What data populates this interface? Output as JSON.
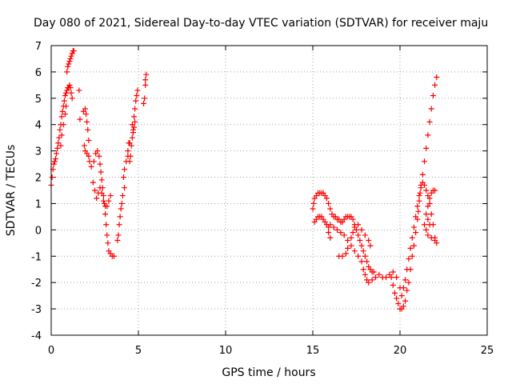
{
  "chart_data": {
    "type": "scatter",
    "title": "Day 080 of 2021, Sidereal Day-to-day VTEC variation (SDTVAR) for receiver maju",
    "xlabel": "GPS time / hours",
    "ylabel": "SDTVAR / TECUs",
    "xlim": [
      0,
      25
    ],
    "ylim": [
      -4,
      7
    ],
    "xticks": [
      0,
      5,
      10,
      15,
      20,
      25
    ],
    "yticks": [
      -4,
      -3,
      -2,
      -1,
      0,
      1,
      2,
      3,
      4,
      5,
      6,
      7
    ],
    "grid": true,
    "marker": "+",
    "color": "#ff0000",
    "series": [
      {
        "name": "trace-1-rise",
        "points": [
          [
            0.0,
            1.7
          ],
          [
            0.05,
            2.0
          ],
          [
            0.1,
            2.3
          ],
          [
            0.15,
            2.5
          ],
          [
            0.2,
            2.6
          ],
          [
            0.25,
            2.7
          ],
          [
            0.3,
            2.9
          ],
          [
            0.35,
            3.1
          ],
          [
            0.4,
            3.3
          ],
          [
            0.45,
            3.5
          ],
          [
            0.5,
            3.8
          ],
          [
            0.55,
            4.0
          ],
          [
            0.6,
            4.3
          ],
          [
            0.65,
            4.5
          ],
          [
            0.7,
            4.7
          ],
          [
            0.75,
            4.9
          ],
          [
            0.8,
            5.1
          ],
          [
            0.85,
            5.2
          ],
          [
            0.9,
            5.3
          ],
          [
            0.95,
            5.4
          ],
          [
            1.0,
            5.4
          ],
          [
            1.05,
            5.5
          ],
          [
            1.1,
            5.4
          ],
          [
            1.15,
            5.2
          ],
          [
            1.2,
            5.0
          ],
          [
            0.9,
            6.0
          ],
          [
            0.95,
            6.2
          ],
          [
            1.0,
            6.3
          ],
          [
            1.05,
            6.4
          ],
          [
            1.1,
            6.5
          ],
          [
            1.15,
            6.6
          ],
          [
            1.2,
            6.7
          ],
          [
            1.25,
            6.8
          ],
          [
            1.3,
            6.8
          ],
          [
            1.6,
            5.3
          ],
          [
            0.55,
            3.2
          ],
          [
            0.6,
            3.6
          ],
          [
            0.7,
            4.0
          ],
          [
            0.8,
            4.4
          ],
          [
            0.85,
            4.7
          ]
        ]
      },
      {
        "name": "trace-1-fall",
        "points": [
          [
            1.65,
            4.2
          ],
          [
            1.85,
            4.5
          ],
          [
            1.95,
            4.6
          ],
          [
            2.0,
            4.4
          ],
          [
            2.05,
            4.1
          ],
          [
            2.1,
            3.8
          ],
          [
            2.15,
            3.4
          ],
          [
            1.9,
            3.2
          ],
          [
            1.95,
            3.0
          ],
          [
            2.05,
            2.9
          ],
          [
            2.15,
            2.8
          ],
          [
            2.2,
            2.6
          ],
          [
            2.3,
            2.4
          ],
          [
            2.45,
            2.6
          ],
          [
            2.55,
            2.9
          ],
          [
            2.65,
            3.0
          ],
          [
            2.75,
            2.8
          ],
          [
            2.8,
            2.5
          ],
          [
            2.85,
            2.2
          ],
          [
            2.9,
            1.9
          ],
          [
            2.95,
            1.6
          ],
          [
            3.0,
            1.3
          ],
          [
            3.05,
            1.0
          ],
          [
            3.1,
            0.6
          ],
          [
            3.15,
            0.2
          ],
          [
            3.2,
            -0.2
          ],
          [
            3.25,
            -0.5
          ],
          [
            3.3,
            -0.8
          ],
          [
            3.4,
            -0.9
          ],
          [
            3.5,
            -1.0
          ],
          [
            3.6,
            -1.0
          ],
          [
            2.4,
            1.8
          ],
          [
            2.5,
            1.5
          ],
          [
            2.6,
            1.2
          ],
          [
            2.7,
            1.4
          ],
          [
            2.8,
            1.6
          ],
          [
            2.9,
            1.4
          ],
          [
            3.0,
            1.1
          ],
          [
            3.1,
            0.9
          ],
          [
            3.2,
            0.9
          ],
          [
            3.3,
            1.1
          ],
          [
            3.4,
            1.3
          ]
        ]
      },
      {
        "name": "trace-1-second-rise",
        "points": [
          [
            3.8,
            -0.4
          ],
          [
            3.85,
            -0.2
          ],
          [
            3.9,
            0.2
          ],
          [
            3.95,
            0.5
          ],
          [
            4.0,
            0.8
          ],
          [
            4.05,
            1.0
          ],
          [
            4.1,
            1.3
          ],
          [
            4.2,
            1.6
          ],
          [
            4.15,
            2.0
          ],
          [
            4.2,
            2.3
          ],
          [
            4.3,
            2.6
          ],
          [
            4.4,
            3.0
          ],
          [
            4.45,
            3.3
          ],
          [
            4.5,
            3.3
          ],
          [
            4.4,
            2.8
          ],
          [
            4.5,
            2.6
          ],
          [
            4.55,
            2.8
          ],
          [
            4.6,
            3.2
          ],
          [
            4.65,
            3.5
          ],
          [
            4.7,
            3.8
          ],
          [
            4.65,
            4.0
          ],
          [
            4.75,
            4.3
          ],
          [
            4.8,
            4.6
          ],
          [
            4.85,
            4.9
          ],
          [
            4.9,
            5.1
          ],
          [
            4.95,
            5.3
          ],
          [
            4.7,
            3.7
          ],
          [
            4.75,
            3.9
          ],
          [
            4.8,
            4.1
          ],
          [
            5.3,
            4.8
          ],
          [
            5.35,
            5.0
          ],
          [
            5.4,
            5.5
          ],
          [
            5.4,
            5.7
          ],
          [
            5.45,
            5.9
          ]
        ]
      },
      {
        "name": "trace-2-early",
        "points": [
          [
            15.0,
            0.8
          ],
          [
            15.05,
            1.0
          ],
          [
            15.1,
            1.2
          ],
          [
            15.2,
            1.3
          ],
          [
            15.3,
            1.4
          ],
          [
            15.4,
            1.4
          ],
          [
            15.5,
            1.4
          ],
          [
            15.6,
            1.4
          ],
          [
            15.7,
            1.3
          ],
          [
            15.8,
            1.2
          ],
          [
            15.9,
            1.0
          ],
          [
            16.0,
            0.8
          ],
          [
            16.1,
            0.6
          ],
          [
            16.2,
            0.5
          ],
          [
            16.3,
            0.5
          ],
          [
            16.4,
            0.4
          ],
          [
            16.5,
            0.4
          ],
          [
            16.6,
            0.3
          ],
          [
            16.7,
            0.3
          ],
          [
            16.8,
            0.4
          ],
          [
            16.9,
            0.5
          ],
          [
            17.0,
            0.5
          ],
          [
            17.1,
            0.5
          ],
          [
            17.2,
            0.5
          ],
          [
            17.3,
            0.4
          ],
          [
            17.4,
            0.2
          ],
          [
            17.5,
            0.0
          ],
          [
            17.6,
            -0.2
          ],
          [
            17.7,
            -0.4
          ],
          [
            17.8,
            -0.6
          ],
          [
            17.9,
            -0.8
          ],
          [
            18.0,
            -1.0
          ],
          [
            18.1,
            -1.2
          ],
          [
            18.2,
            -1.4
          ],
          [
            18.3,
            -1.5
          ],
          [
            18.4,
            -1.6
          ],
          [
            18.5,
            -1.6
          ],
          [
            15.1,
            0.3
          ],
          [
            15.2,
            0.4
          ],
          [
            15.3,
            0.5
          ],
          [
            15.4,
            0.5
          ],
          [
            15.5,
            0.5
          ],
          [
            15.6,
            0.4
          ],
          [
            15.7,
            0.3
          ],
          [
            15.8,
            0.2
          ],
          [
            15.9,
            -0.1
          ],
          [
            16.0,
            -0.3
          ],
          [
            15.9,
            0.1
          ],
          [
            16.0,
            0.2
          ],
          [
            16.2,
            0.1
          ],
          [
            16.4,
            0.0
          ],
          [
            16.6,
            -0.1
          ],
          [
            16.8,
            -0.2
          ],
          [
            17.0,
            -0.4
          ],
          [
            17.2,
            -0.6
          ],
          [
            17.4,
            -0.8
          ],
          [
            17.6,
            -1.0
          ],
          [
            17.8,
            -1.2
          ],
          [
            17.9,
            -1.5
          ],
          [
            18.0,
            -1.7
          ],
          [
            18.1,
            -1.9
          ],
          [
            18.2,
            -2.0
          ],
          [
            18.4,
            -1.9
          ],
          [
            18.6,
            -1.8
          ],
          [
            16.5,
            -1.0
          ],
          [
            16.7,
            -1.0
          ],
          [
            16.9,
            -0.9
          ],
          [
            17.0,
            -0.7
          ],
          [
            17.2,
            -0.3
          ],
          [
            17.3,
            -0.1
          ],
          [
            17.4,
            0.1
          ],
          [
            17.6,
            0.2
          ],
          [
            17.8,
            0.0
          ],
          [
            18.0,
            -0.2
          ],
          [
            18.2,
            -0.4
          ],
          [
            18.3,
            -0.6
          ]
        ]
      },
      {
        "name": "trace-2-late",
        "points": [
          [
            18.8,
            -1.7
          ],
          [
            19.0,
            -1.8
          ],
          [
            19.2,
            -1.8
          ],
          [
            19.4,
            -1.7
          ],
          [
            19.5,
            -1.8
          ],
          [
            19.6,
            -2.1
          ],
          [
            19.7,
            -2.4
          ],
          [
            19.8,
            -2.6
          ],
          [
            19.9,
            -2.8
          ],
          [
            20.0,
            -3.0
          ],
          [
            20.1,
            -3.0
          ],
          [
            20.2,
            -2.9
          ],
          [
            20.3,
            -2.7
          ],
          [
            20.4,
            -2.3
          ],
          [
            20.5,
            -2.0
          ],
          [
            20.6,
            -1.5
          ],
          [
            20.7,
            -1.0
          ],
          [
            20.8,
            -0.6
          ],
          [
            20.9,
            -0.1
          ],
          [
            21.0,
            0.4
          ],
          [
            21.05,
            0.7
          ],
          [
            21.1,
            1.1
          ],
          [
            21.15,
            1.4
          ],
          [
            21.2,
            1.7
          ],
          [
            21.3,
            2.1
          ],
          [
            21.4,
            2.6
          ],
          [
            21.5,
            3.1
          ],
          [
            21.6,
            3.6
          ],
          [
            21.7,
            4.1
          ],
          [
            21.8,
            4.6
          ],
          [
            21.9,
            5.1
          ],
          [
            22.0,
            5.5
          ],
          [
            22.1,
            5.8
          ],
          [
            19.6,
            -1.6
          ],
          [
            19.8,
            -1.8
          ],
          [
            20.0,
            -2.2
          ],
          [
            20.1,
            -2.5
          ],
          [
            20.2,
            -2.2
          ],
          [
            20.3,
            -1.9
          ],
          [
            20.4,
            -1.5
          ],
          [
            20.5,
            -1.1
          ],
          [
            20.6,
            -0.7
          ],
          [
            20.7,
            -0.3
          ],
          [
            20.8,
            0.1
          ],
          [
            20.9,
            0.5
          ],
          [
            21.0,
            0.9
          ],
          [
            21.1,
            1.3
          ],
          [
            21.2,
            1.6
          ],
          [
            21.3,
            1.8
          ],
          [
            21.4,
            1.7
          ],
          [
            21.5,
            1.5
          ],
          [
            21.6,
            1.3
          ],
          [
            21.7,
            1.0
          ],
          [
            21.8,
            0.6
          ],
          [
            21.9,
            0.2
          ],
          [
            22.0,
            -0.3
          ],
          [
            22.1,
            -0.5
          ],
          [
            21.5,
            0.6
          ],
          [
            21.6,
            0.9
          ],
          [
            21.7,
            1.2
          ],
          [
            21.8,
            1.4
          ],
          [
            21.9,
            1.5
          ],
          [
            22.0,
            1.5
          ],
          [
            21.4,
            0.2
          ],
          [
            21.5,
            0.0
          ],
          [
            21.6,
            -0.2
          ],
          [
            21.8,
            -0.3
          ],
          [
            22.0,
            -0.4
          ],
          [
            21.6,
            0.4
          ],
          [
            21.7,
            0.2
          ]
        ]
      }
    ]
  }
}
